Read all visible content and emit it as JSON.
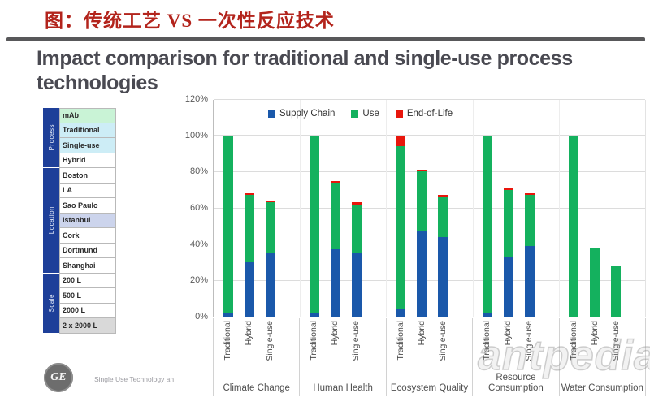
{
  "page": {
    "chinese_title": "图：传统工艺 VS 一次性反应技术",
    "heading": "Impact comparison for traditional and single-use process technologies"
  },
  "sidebar": {
    "strip_color": "#1e3f99",
    "groups": [
      {
        "label": "Process",
        "rows": [
          {
            "text": "mAb",
            "bg": "#c9f3d6"
          },
          {
            "text": "Traditional",
            "bg": "#cdedf6"
          },
          {
            "text": "Single-use",
            "bg": "#cdedf6"
          },
          {
            "text": "Hybrid",
            "bg": "#ffffff"
          }
        ]
      },
      {
        "label": "Location",
        "rows": [
          {
            "text": "Boston",
            "bg": "#ffffff"
          },
          {
            "text": "LA",
            "bg": "#ffffff"
          },
          {
            "text": "Sao Paulo",
            "bg": "#ffffff"
          },
          {
            "text": "Istanbul",
            "bg": "#ccd4ec"
          },
          {
            "text": "Cork",
            "bg": "#ffffff"
          },
          {
            "text": "Dortmund",
            "bg": "#ffffff"
          },
          {
            "text": "Shanghai",
            "bg": "#ffffff"
          }
        ]
      },
      {
        "label": "Scale",
        "rows": [
          {
            "text": "200 L",
            "bg": "#ffffff"
          },
          {
            "text": "500 L",
            "bg": "#ffffff"
          },
          {
            "text": "2000 L",
            "bg": "#ffffff"
          },
          {
            "text": "2 x 2000 L",
            "bg": "#d9d9d9"
          }
        ]
      }
    ]
  },
  "chart_data": {
    "type": "bar",
    "stacked": true,
    "categories": [
      "Climate Change",
      "Human Health",
      "Ecosystem Quality",
      "Resource Consumption",
      "Water Consumption"
    ],
    "bar_labels": [
      "Traditional",
      "Hybrid",
      "Single-use"
    ],
    "series": [
      {
        "name": "Supply Chain",
        "color": "#1a58aa",
        "values": [
          [
            2,
            30,
            35
          ],
          [
            2,
            37,
            35
          ],
          [
            4,
            47,
            44
          ],
          [
            2,
            33,
            39
          ],
          [
            0,
            0,
            0
          ]
        ]
      },
      {
        "name": "Use",
        "color": "#14b15e",
        "values": [
          [
            98,
            37,
            28
          ],
          [
            98,
            37,
            27
          ],
          [
            90,
            33,
            22
          ],
          [
            98,
            37,
            28
          ],
          [
            100,
            38,
            28
          ]
        ]
      },
      {
        "name": "End-of-Life",
        "color": "#e8160c",
        "values": [
          [
            0,
            1,
            1
          ],
          [
            0,
            1,
            1
          ],
          [
            6,
            1,
            1
          ],
          [
            0,
            1,
            1
          ],
          [
            0,
            0,
            0
          ]
        ]
      }
    ],
    "ylabel": "",
    "xlabel": "",
    "ylim": [
      0,
      120
    ],
    "yticks": [
      "0%",
      "20%",
      "40%",
      "60%",
      "80%",
      "100%",
      "120%"
    ],
    "grid": true,
    "legend_position": "top-center"
  },
  "footer": {
    "logo": "GE",
    "text": "Single Use Technology an"
  },
  "watermark": "antpedia"
}
